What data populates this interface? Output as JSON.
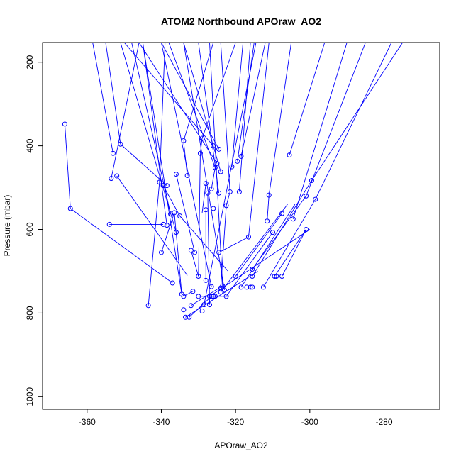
{
  "chart_data": {
    "type": "line",
    "title": "ATOM2 Northbound APOraw_AO2",
    "xlabel": "APOraw_AO2",
    "ylabel": "Pressure (mbar)",
    "xlim": [
      -372,
      -265
    ],
    "ylim": [
      1030,
      153
    ],
    "y_reversed": true,
    "x_ticks": [
      -360,
      -340,
      -320,
      -300,
      -280
    ],
    "y_ticks": [
      200,
      400,
      600,
      800,
      1000
    ],
    "x_tick_labels": [
      "-360",
      "-340",
      "-320",
      "-300",
      "-280"
    ],
    "y_tick_labels": [
      "200",
      "400",
      "600",
      "800",
      "1000"
    ],
    "series_color": "#0000FF",
    "marker": "open-circle",
    "grid": false,
    "points": [
      [
        -366.0,
        348
      ],
      [
        -364.5,
        550
      ],
      [
        -354.0,
        588
      ],
      [
        -339.5,
        588
      ],
      [
        -353.0,
        418
      ],
      [
        -351.0,
        396
      ],
      [
        -353.5,
        478
      ],
      [
        -352.0,
        472
      ],
      [
        -340.5,
        487
      ],
      [
        -339.5,
        495
      ],
      [
        -338.5,
        495
      ],
      [
        -336.5,
        560
      ],
      [
        -340.0,
        655
      ],
      [
        -343.5,
        782
      ],
      [
        -337.0,
        728
      ],
      [
        -338.5,
        590
      ],
      [
        -337.5,
        563
      ],
      [
        -336.0,
        607
      ],
      [
        -335.0,
        568
      ],
      [
        -334.5,
        755
      ],
      [
        -334.0,
        760
      ],
      [
        -333.0,
        471
      ],
      [
        -334.0,
        388
      ],
      [
        -336.0,
        468
      ],
      [
        -331.0,
        655
      ],
      [
        -332.0,
        650
      ],
      [
        -331.5,
        748
      ],
      [
        -330.0,
        712
      ],
      [
        -329.5,
        418
      ],
      [
        -329.0,
        382
      ],
      [
        -330.0,
        760
      ],
      [
        -332.0,
        782
      ],
      [
        -333.5,
        810
      ],
      [
        -332.5,
        810
      ],
      [
        -334.0,
        792
      ],
      [
        -328.0,
        490
      ],
      [
        -327.5,
        513
      ],
      [
        -326.5,
        503
      ],
      [
        -325.5,
        452
      ],
      [
        -325.0,
        442
      ],
      [
        -326.0,
        400
      ],
      [
        -324.5,
        408
      ],
      [
        -324.0,
        462
      ],
      [
        -324.5,
        513
      ],
      [
        -328.0,
        553
      ],
      [
        -326.0,
        550
      ],
      [
        -328.0,
        722
      ],
      [
        -327.0,
        780
      ],
      [
        -328.5,
        780
      ],
      [
        -329.0,
        795
      ],
      [
        -327.0,
        760
      ],
      [
        -326.5,
        760
      ],
      [
        -325.5,
        760
      ],
      [
        -324.5,
        655
      ],
      [
        -324.0,
        740
      ],
      [
        -324.0,
        750
      ],
      [
        -323.5,
        735
      ],
      [
        -322.5,
        760
      ],
      [
        -323.0,
        745
      ],
      [
        -322.5,
        543
      ],
      [
        -321.5,
        510
      ],
      [
        -321.0,
        450
      ],
      [
        -320.0,
        712
      ],
      [
        -319.5,
        437
      ],
      [
        -318.5,
        425
      ],
      [
        -319.0,
        510
      ],
      [
        -318.5,
        738
      ],
      [
        -317.0,
        738
      ],
      [
        -316.0,
        738
      ],
      [
        -315.5,
        738
      ],
      [
        -316.5,
        618
      ],
      [
        -315.5,
        695
      ],
      [
        -315.5,
        712
      ],
      [
        -312.5,
        738
      ],
      [
        -311.5,
        580
      ],
      [
        -311.0,
        518
      ],
      [
        -310.0,
        607
      ],
      [
        -309.5,
        712
      ],
      [
        -309.0,
        712
      ],
      [
        -307.5,
        712
      ],
      [
        -307.5,
        562
      ],
      [
        -305.5,
        422
      ],
      [
        -304.5,
        575
      ],
      [
        -301.0,
        520
      ],
      [
        -301.0,
        600
      ],
      [
        -299.5,
        483
      ],
      [
        -298.5,
        528
      ],
      [
        -326.5,
        737
      ],
      [
        -326.0,
        760
      ]
    ],
    "segments": [
      [
        -366.0,
        348,
        -364.5,
        550
      ],
      [
        -364.5,
        550,
        -337.0,
        728
      ],
      [
        -354.0,
        588,
        -339.5,
        588
      ],
      [
        -352.0,
        472,
        -333.0,
        710
      ],
      [
        -353.5,
        478,
        -346.0,
        153
      ],
      [
        -353.0,
        418,
        -358.5,
        153
      ],
      [
        -351.0,
        396,
        -355.0,
        153
      ],
      [
        -351.0,
        396,
        -338.5,
        495
      ],
      [
        -343.5,
        782,
        -340.5,
        487
      ],
      [
        -340.5,
        487,
        -339.0,
        153
      ],
      [
        -340.0,
        655,
        -336.5,
        560
      ],
      [
        -339.5,
        495,
        -335.0,
        568
      ],
      [
        -336.5,
        560,
        -334.5,
        755
      ],
      [
        -334.0,
        760,
        -331.5,
        748
      ],
      [
        -333.0,
        471,
        -334.0,
        390
      ],
      [
        -334.0,
        388,
        -326.0,
        153
      ],
      [
        -336.0,
        468,
        -331.0,
        655
      ],
      [
        -332.0,
        650,
        -330.0,
        712
      ],
      [
        -330.0,
        712,
        -329.5,
        418
      ],
      [
        -329.5,
        418,
        -329.0,
        382
      ],
      [
        -329.0,
        382,
        -320.0,
        153
      ],
      [
        -332.5,
        810,
        -326.5,
        760
      ],
      [
        -332.0,
        782,
        -323.5,
        735
      ],
      [
        -328.0,
        490,
        -329.0,
        560
      ],
      [
        -328.0,
        553,
        -328.0,
        722
      ],
      [
        -327.5,
        513,
        -327.0,
        780
      ],
      [
        -326.5,
        503,
        -325.5,
        452
      ],
      [
        -325.5,
        452,
        -338.0,
        153
      ],
      [
        -325.0,
        442,
        -346.0,
        153
      ],
      [
        -326.0,
        400,
        -350.0,
        153
      ],
      [
        -324.5,
        408,
        -340.0,
        153
      ],
      [
        -324.0,
        462,
        -334.0,
        153
      ],
      [
        -324.5,
        513,
        -330.0,
        153
      ],
      [
        -324.5,
        655,
        -316.5,
        618
      ],
      [
        -324.0,
        740,
        -322.5,
        543
      ],
      [
        -322.5,
        543,
        -321.5,
        510
      ],
      [
        -321.0,
        450,
        -318.0,
        153
      ],
      [
        -319.5,
        437,
        -315.0,
        153
      ],
      [
        -318.5,
        425,
        -312.0,
        153
      ],
      [
        -319.0,
        510,
        -316.0,
        153
      ],
      [
        -322.5,
        760,
        -310.0,
        607
      ],
      [
        -320.0,
        712,
        -307.5,
        562
      ],
      [
        -318.5,
        738,
        -304.0,
        540
      ],
      [
        -316.5,
        618,
        -311.0,
        153
      ],
      [
        -315.5,
        695,
        -301.0,
        520
      ],
      [
        -315.5,
        712,
        -299.5,
        483
      ],
      [
        -312.5,
        738,
        -298.5,
        528
      ],
      [
        -311.5,
        580,
        -311.0,
        518
      ],
      [
        -311.0,
        518,
        -305.0,
        153
      ],
      [
        -309.5,
        712,
        -301.0,
        600
      ],
      [
        -307.5,
        712,
        -301.0,
        600
      ],
      [
        -305.5,
        422,
        -296.0,
        153
      ],
      [
        -304.5,
        575,
        -290.0,
        153
      ],
      [
        -301.0,
        520,
        -285.0,
        153
      ],
      [
        -299.5,
        483,
        -275.0,
        153
      ],
      [
        -298.5,
        528,
        -278.0,
        153
      ],
      [
        -326.5,
        737,
        -340.0,
        153
      ],
      [
        -323.5,
        735,
        -327.0,
        153
      ],
      [
        -323.0,
        745,
        -334.0,
        153
      ],
      [
        -321.5,
        510,
        -324.0,
        153
      ],
      [
        -334.5,
        755,
        -345.0,
        153
      ],
      [
        -333.5,
        810,
        -314.0,
        700
      ],
      [
        -327.0,
        760,
        -300.0,
        600
      ],
      [
        -324.0,
        750,
        -306.0,
        540
      ],
      [
        -328.5,
        780,
        -314.5,
        153
      ],
      [
        -330.0,
        760,
        -322.0,
        760
      ],
      [
        -335.0,
        568,
        -322.0,
        700
      ],
      [
        -338.5,
        590,
        -345.0,
        153
      ],
      [
        -336.0,
        607,
        -351.0,
        153
      ],
      [
        -337.5,
        563,
        -348.0,
        153
      ]
    ]
  }
}
